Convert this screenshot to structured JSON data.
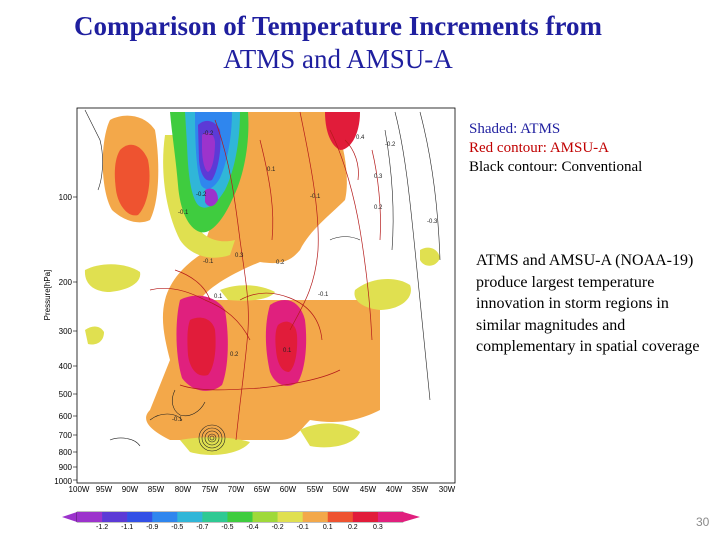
{
  "title": {
    "line1": "Comparison of Temperature Increments from",
    "line2": "ATMS and AMSU-A"
  },
  "legend": {
    "shaded": "Shaded:   ATMS",
    "red": "Red contour: AMSU-A",
    "black": "Black contour: Conventional"
  },
  "description": "ATMS and AMSU-A (NOAA-19) produce largest temperature innovation in storm regions in similar magnitudes and complementary in spatial coverage",
  "page_number": "30",
  "plot": {
    "ylabel": "Pressure[hPa]",
    "y_ticks": [
      "100",
      "200",
      "300",
      "400",
      "500",
      "600",
      "700",
      "800",
      "900",
      "1000"
    ],
    "x_ticks": [
      "100W",
      "95W",
      "90W",
      "85W",
      "80W",
      "75W",
      "70W",
      "65W",
      "60W",
      "55W",
      "50W",
      "45W",
      "40W",
      "35W",
      "30W"
    ],
    "colorbar_labels": [
      "-1.2",
      "-1.1",
      "-0.9",
      "-0.5",
      "-0.7",
      "-0.5",
      "-0.4",
      "-0.2",
      "-0.1",
      "0.1",
      "0.2",
      "0.3"
    ],
    "colorbar_colors": [
      "#9c33cc",
      "#5c3ad6",
      "#3250e6",
      "#2f86ee",
      "#30b6d8",
      "#2fc993",
      "#3fcc3f",
      "#9fd93a",
      "#e0e050",
      "#f3a84a",
      "#ee5330",
      "#e11c3a",
      "#e0207e"
    ],
    "contour_values": [
      "-0.2",
      "-0.2",
      "-0.1",
      "0.3",
      "-0.1",
      "0.2",
      "0.1",
      "0.2",
      "0.1",
      "-0.1",
      "0.4",
      "0.3",
      "0.2",
      "-0.2",
      "-0.3",
      "0.1",
      "-0.1",
      "-0.1"
    ]
  }
}
